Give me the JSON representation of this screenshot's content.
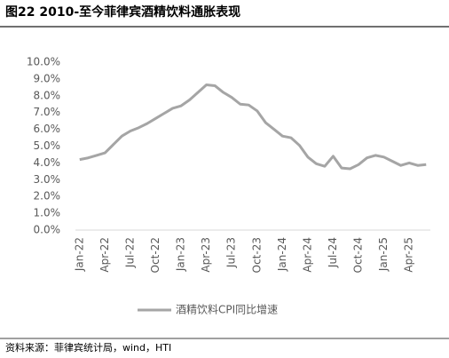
{
  "chart_data": {
    "type": "line",
    "title": "图22 2010-至今菲律宾酒精饮料通胀表现",
    "source": "资料来源：菲律宾统计局，wind，HTI",
    "categories": [
      "Jan-22",
      null,
      null,
      "Apr-22",
      null,
      null,
      "Jul-22",
      null,
      null,
      "Oct-22",
      null,
      null,
      "Jan-23",
      null,
      null,
      "Apr-23",
      null,
      null,
      "Jul-23",
      null,
      null,
      "Oct-23",
      null,
      null,
      "Jan-24",
      null,
      null,
      "Apr-24",
      null,
      null,
      "Jul-24",
      null,
      null,
      "Oct-24",
      null,
      null,
      "Jan-25",
      null,
      null,
      "Apr-25",
      null,
      null
    ],
    "series": [
      {
        "name": "酒精饮料CPI同比增速",
        "color": "#a5a5a5",
        "values": [
          4.2,
          4.3,
          4.45,
          4.6,
          5.1,
          5.6,
          5.9,
          6.1,
          6.35,
          6.65,
          6.95,
          7.25,
          7.4,
          7.75,
          8.2,
          8.65,
          8.6,
          8.2,
          7.9,
          7.5,
          7.45,
          7.1,
          6.4,
          6.0,
          5.6,
          5.5,
          5.05,
          4.35,
          3.95,
          3.8,
          4.4,
          3.7,
          3.65,
          3.9,
          4.3,
          4.45,
          4.35,
          4.1,
          3.85,
          4.0,
          3.85,
          3.9
        ]
      }
    ],
    "ylim": [
      0,
      10
    ],
    "yticks": [
      {
        "value": 0,
        "label": "0.0%"
      },
      {
        "value": 1,
        "label": "1.0%"
      },
      {
        "value": 2,
        "label": "2.0%"
      },
      {
        "value": 3,
        "label": "3.0%"
      },
      {
        "value": 4,
        "label": "4.0%"
      },
      {
        "value": 5,
        "label": "5.0%"
      },
      {
        "value": 6,
        "label": "6.0%"
      },
      {
        "value": 7,
        "label": "7.0%"
      },
      {
        "value": 8,
        "label": "8.0%"
      },
      {
        "value": 9,
        "label": "9.0%"
      },
      {
        "value": 10,
        "label": "10.0%"
      }
    ],
    "grid": false,
    "legend": "bottom"
  }
}
